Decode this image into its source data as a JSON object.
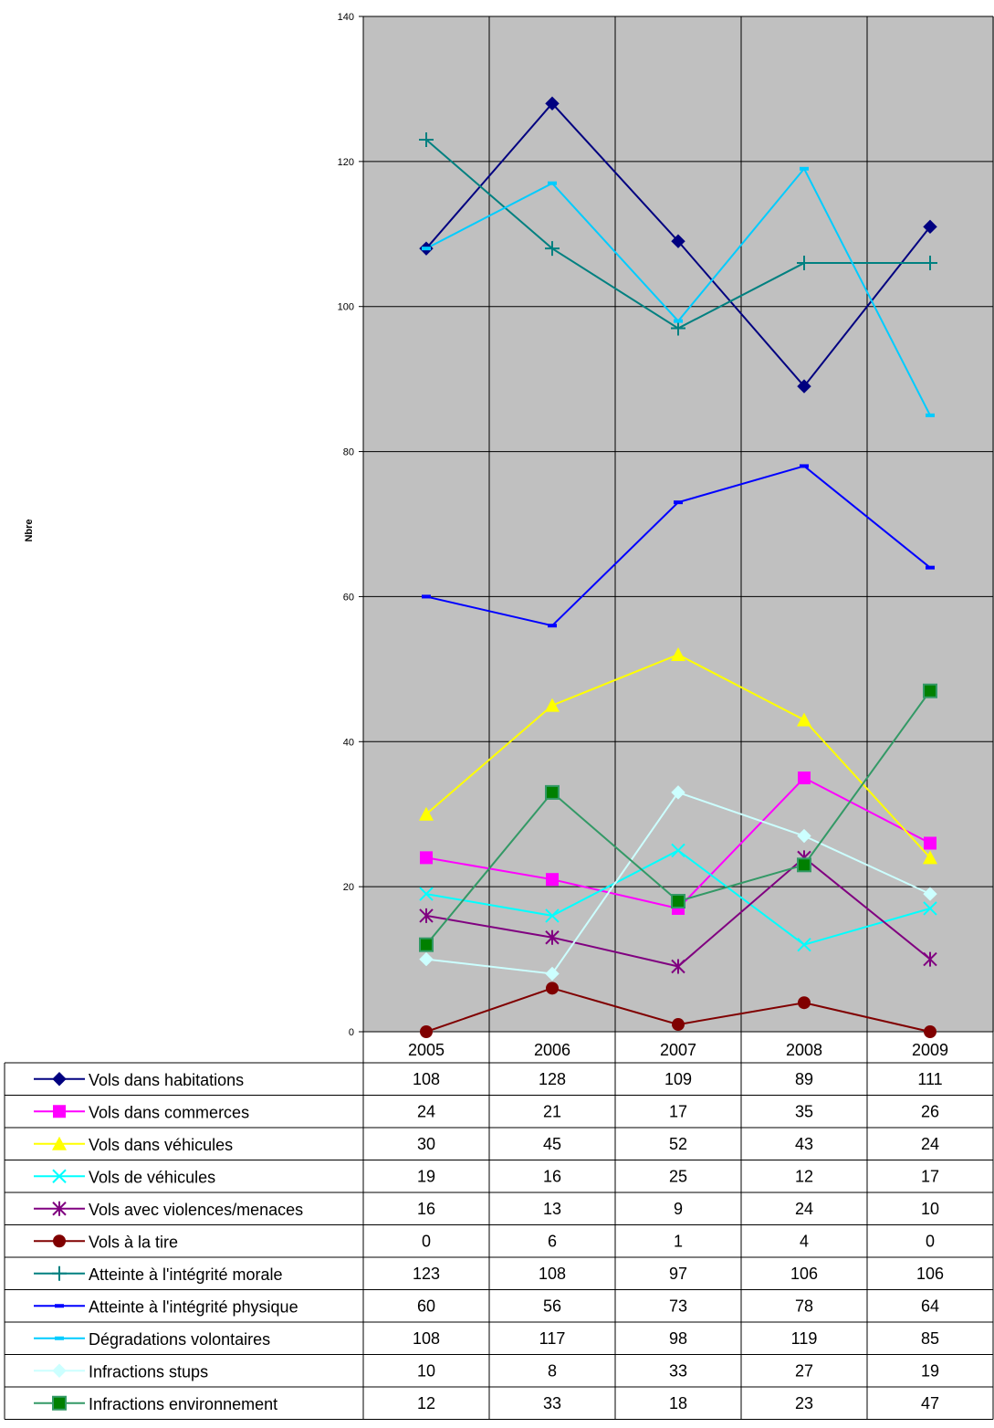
{
  "chart_data": {
    "type": "line",
    "title": "",
    "xlabel": "",
    "ylabel": "Nbre",
    "ylim": [
      0,
      140
    ],
    "yticks": [
      0,
      20,
      40,
      60,
      80,
      100,
      120,
      140
    ],
    "grid": true,
    "legend_placement": "data table below chart",
    "categories": [
      "2005",
      "2006",
      "2007",
      "2008",
      "2009"
    ],
    "series": [
      {
        "name": "Vols dans habitations",
        "values": [
          108,
          128,
          109,
          89,
          111
        ],
        "color": "#000080",
        "marker": "diamond"
      },
      {
        "name": "Vols dans commerces",
        "values": [
          24,
          21,
          17,
          35,
          26
        ],
        "color": "#FF00FF",
        "marker": "square"
      },
      {
        "name": "Vols dans véhicules",
        "values": [
          30,
          45,
          52,
          43,
          24
        ],
        "color": "#FFFF00",
        "marker": "triangle"
      },
      {
        "name": "Vols de véhicules",
        "values": [
          19,
          16,
          25,
          12,
          17
        ],
        "color": "#00FFFF",
        "marker": "x"
      },
      {
        "name": "Vols avec violences/menaces",
        "values": [
          16,
          13,
          9,
          24,
          10
        ],
        "color": "#800080",
        "marker": "star"
      },
      {
        "name": "Vols à la tire",
        "values": [
          0,
          6,
          1,
          4,
          0
        ],
        "color": "#800000",
        "marker": "circle"
      },
      {
        "name": "Atteinte à l'intégrité morale",
        "values": [
          123,
          108,
          97,
          106,
          106
        ],
        "color": "#008080",
        "marker": "plus"
      },
      {
        "name": "Atteinte à l'intégrité physique",
        "values": [
          60,
          56,
          73,
          78,
          64
        ],
        "color": "#0000FF",
        "marker": "dash"
      },
      {
        "name": "Dégradations volontaires",
        "values": [
          108,
          117,
          98,
          119,
          85
        ],
        "color": "#00CCFF",
        "marker": "dash"
      },
      {
        "name": "Infractions stups",
        "values": [
          10,
          8,
          33,
          27,
          19
        ],
        "color": "#CCFFFF",
        "marker": "diamond"
      },
      {
        "name": "Infractions environnement",
        "values": [
          12,
          33,
          18,
          23,
          47
        ],
        "color": "#339966",
        "marker": "square-green"
      }
    ],
    "colors": {
      "plot_background": "#C0C0C0",
      "gridline": "#000000"
    }
  }
}
